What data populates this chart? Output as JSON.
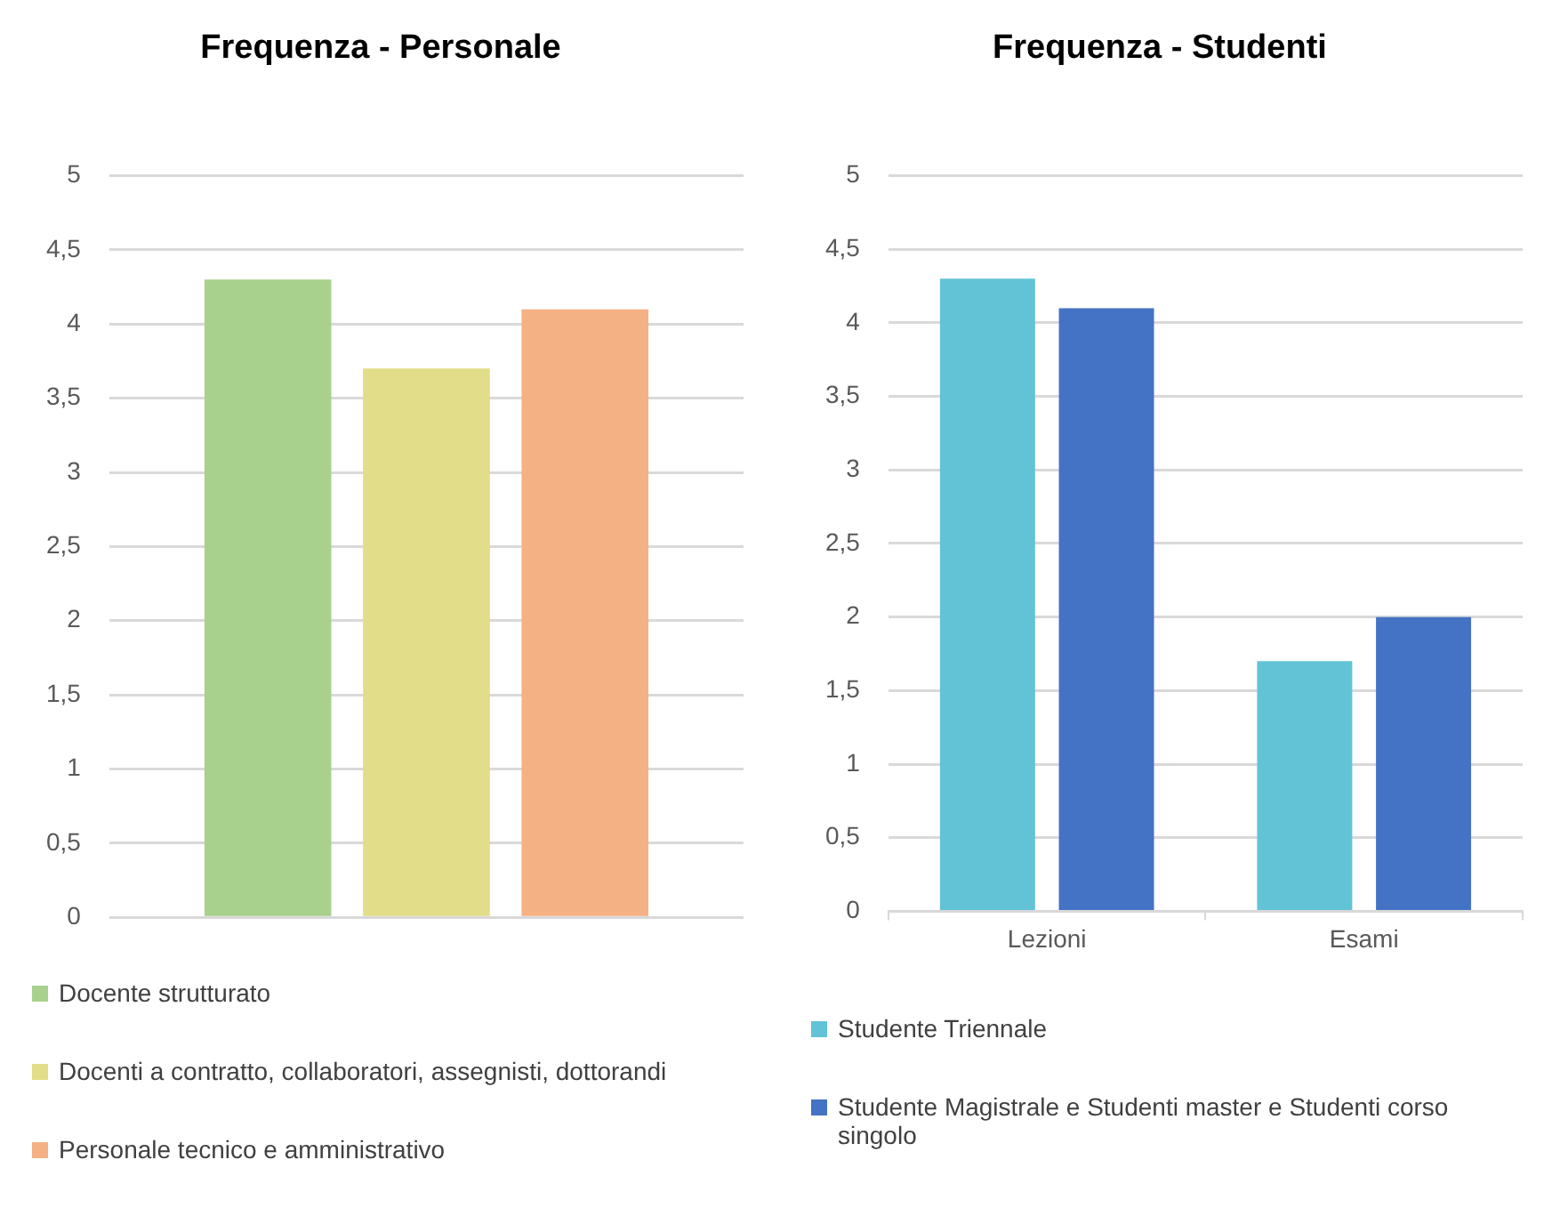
{
  "chart_data": [
    {
      "type": "bar",
      "title": "Frequenza - Personale",
      "categories": [
        null
      ],
      "series": [
        {
          "name": "Docente strutturato",
          "color": "#a9d18e",
          "values": [
            4.3
          ]
        },
        {
          "name": "Docenti a contratto, collaboratori, assegnisti, dottorandi",
          "color": "#e2dd88",
          "values": [
            3.7
          ]
        },
        {
          "name": "Personale tecnico e amministrativo",
          "color": "#f4b183",
          "values": [
            4.1
          ]
        }
      ],
      "ylim": [
        0,
        5
      ],
      "yticks": [
        0,
        {
          "value": 0.5,
          "label": "0,5"
        },
        1,
        {
          "value": 1.5,
          "label": "1,5"
        },
        2,
        {
          "value": 2.5,
          "label": "2,5"
        },
        3,
        {
          "value": 3.5,
          "label": "3,5"
        },
        4,
        {
          "value": 4.5,
          "label": "4,5"
        },
        5
      ],
      "grid": "y",
      "legend": "bottom"
    },
    {
      "type": "bar",
      "title": "Frequenza - Studenti",
      "categories": [
        "Lezioni",
        "Esami"
      ],
      "series": [
        {
          "name": "Studente Triennale",
          "color": "#62c3d6",
          "values": [
            4.3,
            1.7
          ]
        },
        {
          "name": "Studente Magistrale e Studenti master e Studenti corso singolo",
          "color": "#4472c4",
          "values": [
            4.1,
            2.0
          ]
        }
      ],
      "ylim": [
        0,
        5
      ],
      "yticks": [
        0,
        {
          "value": 0.5,
          "label": "0,5"
        },
        1,
        {
          "value": 1.5,
          "label": "1,5"
        },
        2,
        {
          "value": 2.5,
          "label": "2,5"
        },
        3,
        {
          "value": 3.5,
          "label": "3,5"
        },
        4,
        {
          "value": 4.5,
          "label": "4,5"
        },
        5
      ],
      "grid": "y",
      "legend": "bottom"
    }
  ]
}
